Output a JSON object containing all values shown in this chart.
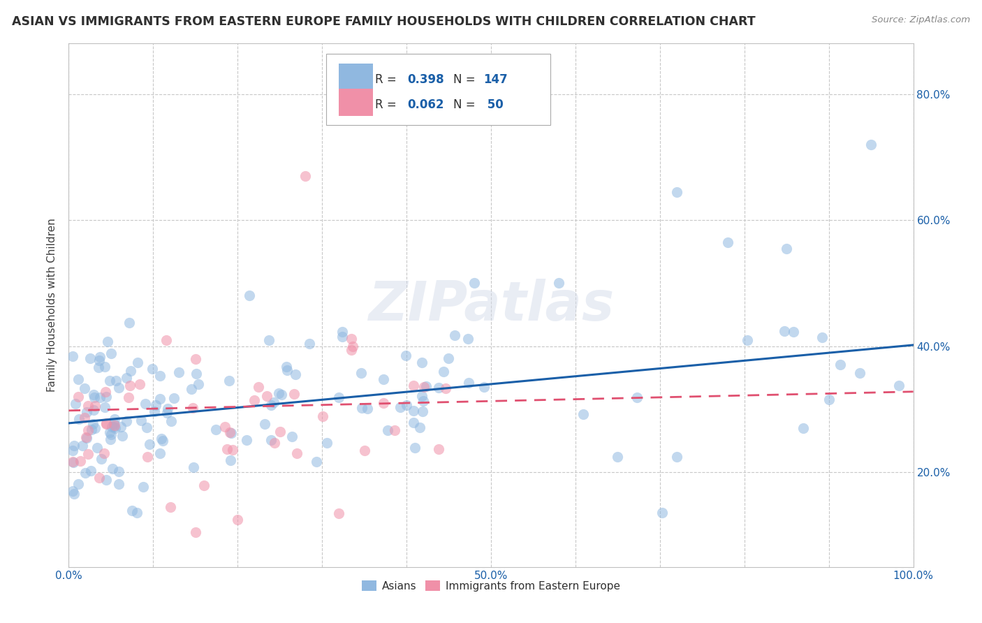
{
  "title": "ASIAN VS IMMIGRANTS FROM EASTERN EUROPE FAMILY HOUSEHOLDS WITH CHILDREN CORRELATION CHART",
  "source": "Source: ZipAtlas.com",
  "ylabel": "Family Households with Children",
  "xlim": [
    0,
    1.0
  ],
  "ylim": [
    0.05,
    0.88
  ],
  "ytick_positions": [
    0.2,
    0.4,
    0.6,
    0.8
  ],
  "ytick_labels": [
    "20.0%",
    "40.0%",
    "60.0%",
    "80.0%"
  ],
  "xtick_positions": [
    0.0,
    0.1,
    0.2,
    0.3,
    0.4,
    0.5,
    0.6,
    0.7,
    0.8,
    0.9,
    1.0
  ],
  "xtick_labels": [
    "0.0%",
    "",
    "",
    "",
    "",
    "50.0%",
    "",
    "",
    "",
    "",
    "100.0%"
  ],
  "asian_color": "#90b8e0",
  "eastern_europe_color": "#f090a8",
  "asian_line_color": "#1a5fa8",
  "eastern_europe_line_color": "#e05070",
  "legend_r_color": "#1a5fa8",
  "background_color": "#ffffff",
  "grid_color": "#c8c8c8",
  "title_color": "#303030",
  "axis_label_color": "#404040",
  "tick_label_color": "#1a5fa8",
  "watermark": "ZIPatlas",
  "asian_line_y0": 0.278,
  "asian_line_y1": 0.402,
  "ee_line_y0": 0.298,
  "ee_line_y1": 0.328
}
